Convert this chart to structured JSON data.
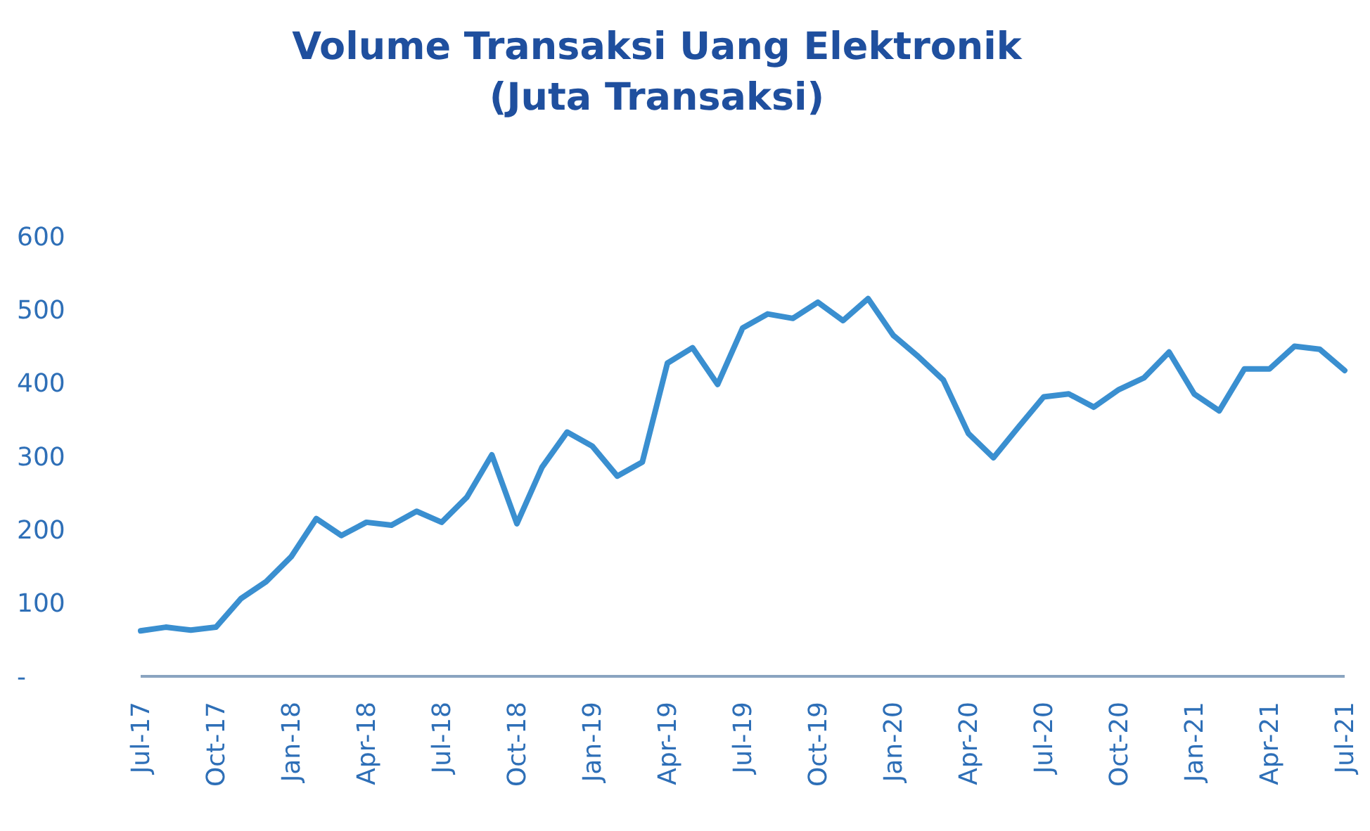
{
  "chart_data": {
    "type": "line",
    "title": "Volume Transaksi Uang Elektronik\n(Juta Transaksi)",
    "categories": [
      "Jul-17",
      null,
      null,
      "Oct-17",
      null,
      null,
      "Jan-18",
      null,
      null,
      "Apr-18",
      null,
      null,
      "Jul-18",
      null,
      null,
      "Oct-18",
      null,
      null,
      "Jan-19",
      null,
      null,
      "Apr-19",
      null,
      null,
      "Jul-19",
      null,
      null,
      "Oct-19",
      null,
      null,
      "Jan-20",
      null,
      null,
      "Apr-20",
      null,
      null,
      "Jul-20",
      null,
      null,
      "Oct-20",
      null,
      null,
      "Jan-21",
      null,
      null,
      "Apr-21",
      null,
      null,
      "Jul-21"
    ],
    "series": [
      {
        "color": "#3a8fd0",
        "values": [
          62,
          67,
          63,
          67,
          106,
          129,
          163,
          215,
          192,
          210,
          206,
          225,
          210,
          244,
          302,
          208,
          285,
          333,
          314,
          273,
          292,
          427,
          448,
          398,
          475,
          494,
          488,
          510,
          485,
          515,
          465,
          436,
          404,
          331,
          298,
          340,
          381,
          385,
          367,
          391,
          407,
          442,
          385,
          362,
          419,
          419,
          450,
          446,
          417
        ]
      }
    ],
    "ylim": [
      0,
      600
    ],
    "yticks": [
      {
        "value": 0,
        "label": "-"
      },
      100,
      200,
      300,
      400,
      500,
      600
    ],
    "grid": false,
    "marker": "none",
    "line_style": "solid"
  }
}
